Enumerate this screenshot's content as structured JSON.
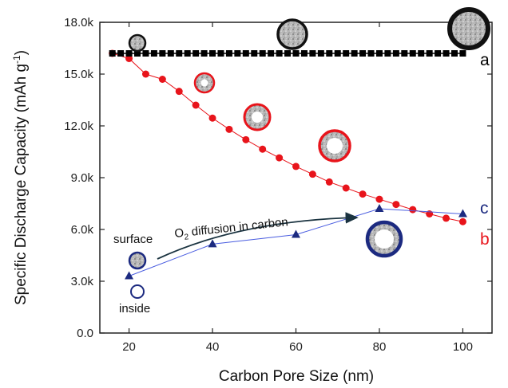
{
  "chart_data": {
    "type": "line",
    "xlabel": "Carbon Pore Size (nm)",
    "ylabel_main": "Specific Discharge Capacity (mAh g",
    "ylabel_sup": "-1",
    "ylabel_close": ")",
    "xlim": [
      13,
      107
    ],
    "ylim": [
      0,
      18000
    ],
    "x_ticks": [
      20,
      40,
      60,
      80,
      100
    ],
    "x_tick_labels": [
      "20",
      "40",
      "60",
      "80",
      "100"
    ],
    "y_ticks": [
      0,
      3000,
      6000,
      9000,
      12000,
      15000,
      18000
    ],
    "y_tick_labels": [
      "0.0",
      "3.0k",
      "6.0k",
      "9.0k",
      "12.0k",
      "15.0k",
      "18.0k"
    ],
    "series": [
      {
        "name": "a",
        "color": "#000000",
        "marker": "square",
        "x": [
          16,
          18,
          20,
          22,
          24,
          26,
          28,
          30,
          32,
          34,
          36,
          38,
          40,
          42,
          44,
          46,
          48,
          50,
          52,
          54,
          56,
          58,
          60,
          62,
          64,
          66,
          68,
          70,
          72,
          74,
          76,
          78,
          80,
          82,
          84,
          86,
          88,
          90,
          92,
          94,
          96,
          98,
          100
        ],
        "y": [
          16200,
          16200,
          16200,
          16200,
          16200,
          16200,
          16200,
          16200,
          16200,
          16200,
          16200,
          16200,
          16200,
          16200,
          16200,
          16200,
          16200,
          16200,
          16200,
          16200,
          16200,
          16200,
          16200,
          16200,
          16200,
          16200,
          16200,
          16200,
          16200,
          16200,
          16200,
          16200,
          16200,
          16200,
          16200,
          16200,
          16200,
          16200,
          16200,
          16200,
          16200,
          16200,
          16200
        ]
      },
      {
        "name": "b",
        "color": "#e8141b",
        "marker": "circle",
        "x": [
          16,
          20,
          24,
          28,
          32,
          36,
          40,
          44,
          48,
          52,
          56,
          60,
          64,
          68,
          72,
          76,
          80,
          84,
          88,
          92,
          96,
          100
        ],
        "y": [
          16200,
          15900,
          15000,
          14700,
          14000,
          13200,
          12450,
          11800,
          11200,
          10650,
          10150,
          9650,
          9200,
          8750,
          8400,
          8050,
          7750,
          7450,
          7150,
          6900,
          6650,
          6450
        ]
      },
      {
        "name": "c",
        "color": "#1c2a80",
        "line_color": "#4a5de0",
        "marker": "triangle",
        "x": [
          20,
          40,
          60,
          80,
          100
        ],
        "y": [
          3300,
          5150,
          5700,
          7200,
          6900
        ]
      }
    ],
    "annotations": {
      "surface": "surface",
      "inside": "inside",
      "diffusion_prefix": "O",
      "diffusion_sub": "2",
      "diffusion_suffix": " diffusion in carbon"
    }
  }
}
